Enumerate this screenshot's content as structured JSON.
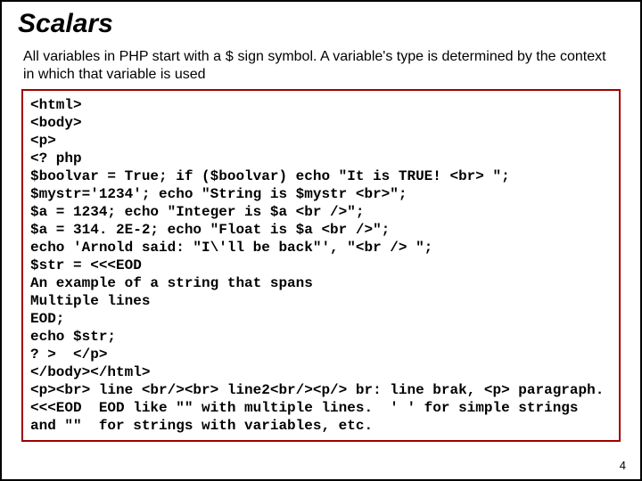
{
  "slide": {
    "title": "Scalars",
    "title_fontsize": 30,
    "intro_fontsize": 16,
    "intro_before": "All variables in PHP start with a ",
    "intro_dollar": "$",
    "intro_after": " sign symbol. A variable's type is determined by the context in which that variable is used",
    "code_fontsize": 16,
    "code_border_color": "#a00000",
    "code_lines": [
      "<html>",
      "<body>",
      "<p>",
      "<? php",
      "$boolvar = True; if ($boolvar) echo \"It is TRUE! <br> \";",
      "$mystr='1234'; echo \"String is $mystr <br>\";",
      "$a = 1234; echo \"Integer is $a <br />\";",
      "$a = 314. 2E-2; echo \"Float is $a <br />\";",
      "echo 'Arnold said: \"I\\'ll be back\"', \"<br /> \";",
      "$str = <<<EOD",
      "An example of a string that spans",
      "Multiple lines",
      "EOD;",
      "echo $str;",
      "? >  </p>",
      "</body></html>",
      "<p><br> line <br/><br> line2<br/><p/> br: line brak, <p> paragraph. <<<EOD  EOD like \"\" with multiple lines.  ' ' for simple strings and \"\"  for strings with variables, etc."
    ],
    "page_number": "4",
    "page_num_fontsize": 13,
    "background_color": "#ffffff",
    "border_color": "#000000",
    "text_color": "#000000"
  }
}
